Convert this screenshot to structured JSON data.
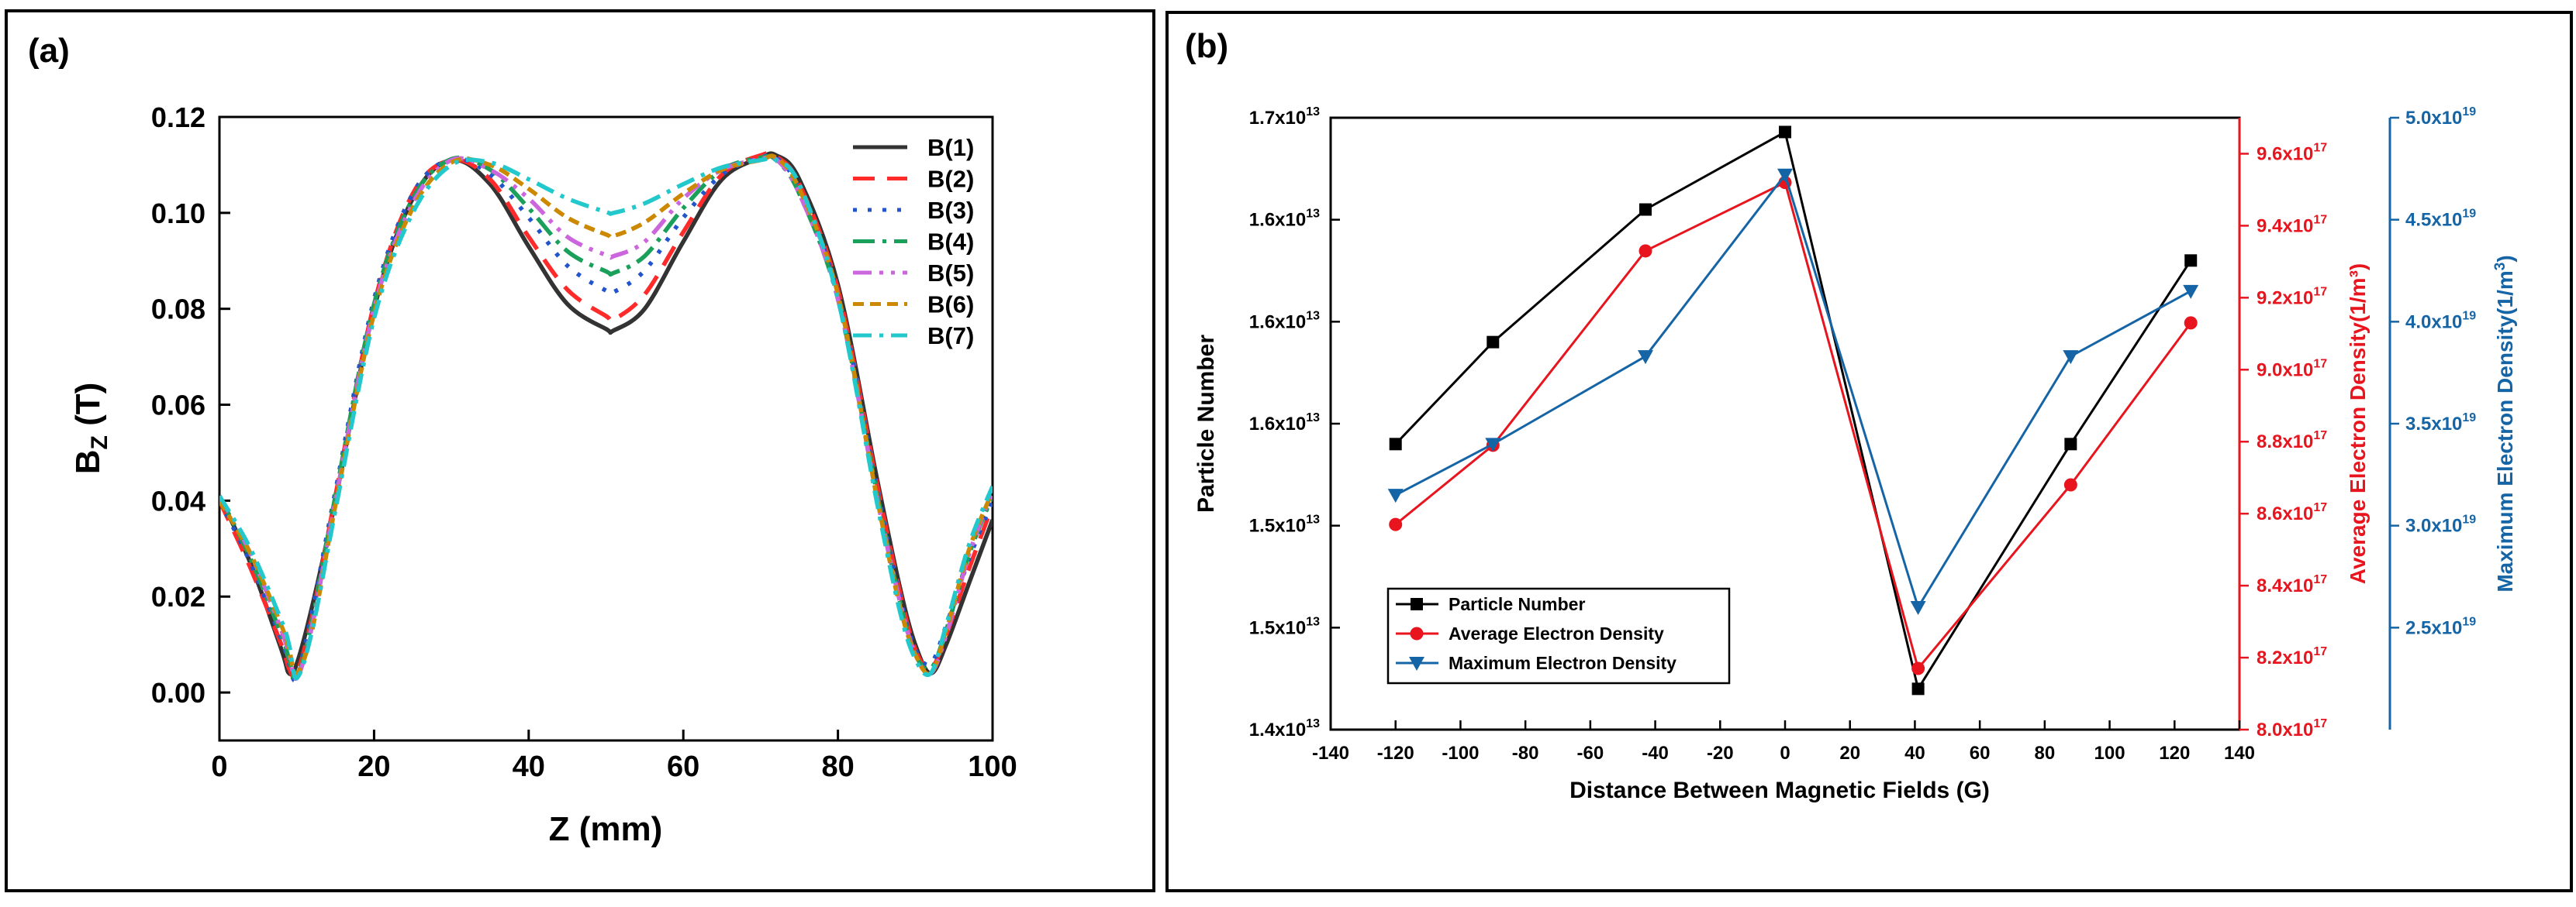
{
  "panels": [
    {
      "label": "(a)"
    },
    {
      "label": "(b)"
    }
  ],
  "chart_data": [
    {
      "type": "line",
      "panel": "(a)",
      "title": "",
      "xlabel": "Z (mm)",
      "ylabel_main": "B",
      "ylabel_sub": "Z",
      "ylabel_unit": " (T)",
      "xlim": [
        0,
        100
      ],
      "ylim": [
        -0.01,
        0.12
      ],
      "xticks": [
        "0",
        "20",
        "40",
        "60",
        "80",
        "100"
      ],
      "yticks": [
        "0.00",
        "0.02",
        "0.04",
        "0.06",
        "0.08",
        "0.10",
        "0.12"
      ],
      "legend_position": "top-right",
      "x": [
        0,
        4,
        8,
        9,
        10,
        12,
        15,
        20,
        25,
        30,
        35,
        40,
        45,
        50,
        55,
        60,
        65,
        70,
        72,
        75,
        80,
        85,
        88,
        90,
        92,
        94,
        97,
        100
      ],
      "series": [
        {
          "name": "B(1)",
          "color": "#333333",
          "dash": "none",
          "min_x": 51,
          "min_y": 0.0755,
          "values": [
            0.041,
            0.027,
            0.009,
            0.004,
            0.006,
            0.018,
            0.04,
            0.08,
            0.103,
            0.111,
            0.106,
            0.093,
            0.081,
            0.0758,
            0.08,
            0.094,
            0.107,
            0.1115,
            0.112,
            0.107,
            0.085,
            0.045,
            0.022,
            0.01,
            0.004,
            0.01,
            0.023,
            0.036
          ]
        },
        {
          "name": "B(2)",
          "color": "#ff2a2a",
          "dash": "28 16",
          "min_x": 51,
          "min_y": 0.0778,
          "values": [
            0.04,
            0.026,
            0.01,
            0.005,
            0.004,
            0.016,
            0.041,
            0.081,
            0.104,
            0.111,
            0.107,
            0.095,
            0.084,
            0.0785,
            0.083,
            0.096,
            0.108,
            0.112,
            0.1118,
            0.106,
            0.084,
            0.044,
            0.021,
            0.009,
            0.005,
            0.012,
            0.026,
            0.039
          ]
        },
        {
          "name": "B(3)",
          "color": "#2255cc",
          "dash": "5 14",
          "min_x": 51,
          "min_y": 0.0835,
          "values": [
            0.04,
            0.027,
            0.011,
            0.006,
            0.003,
            0.017,
            0.042,
            0.082,
            0.104,
            0.1112,
            0.108,
            0.099,
            0.089,
            0.0838,
            0.088,
            0.099,
            0.108,
            0.1115,
            0.1115,
            0.105,
            0.083,
            0.043,
            0.02,
            0.009,
            0.006,
            0.014,
            0.028,
            0.04
          ]
        },
        {
          "name": "B(4)",
          "color": "#1aa05a",
          "dash": "28 10 5 10",
          "min_x": 51,
          "min_y": 0.0875,
          "values": [
            0.041,
            0.028,
            0.012,
            0.007,
            0.003,
            0.015,
            0.041,
            0.081,
            0.103,
            0.1112,
            0.109,
            0.101,
            0.092,
            0.0878,
            0.091,
            0.101,
            0.109,
            0.1115,
            0.111,
            0.104,
            0.082,
            0.042,
            0.019,
            0.008,
            0.005,
            0.013,
            0.029,
            0.041
          ]
        },
        {
          "name": "B(5)",
          "color": "#cc66dd",
          "dash": "24 10 5 10 5 10",
          "min_x": 51,
          "min_y": 0.091,
          "values": [
            0.041,
            0.029,
            0.013,
            0.008,
            0.003,
            0.014,
            0.04,
            0.08,
            0.102,
            0.111,
            0.109,
            0.103,
            0.095,
            0.0912,
            0.094,
            0.103,
            0.109,
            0.1112,
            0.1112,
            0.104,
            0.082,
            0.041,
            0.019,
            0.008,
            0.004,
            0.012,
            0.029,
            0.042
          ]
        },
        {
          "name": "B(6)",
          "color": "#cc8800",
          "dash": "14 8",
          "min_x": 51,
          "min_y": 0.0952,
          "values": [
            0.04,
            0.029,
            0.014,
            0.009,
            0.004,
            0.013,
            0.039,
            0.079,
            0.101,
            0.1105,
            0.11,
            0.105,
            0.099,
            0.0955,
            0.098,
            0.104,
            0.109,
            0.111,
            0.1115,
            0.105,
            0.083,
            0.041,
            0.018,
            0.008,
            0.004,
            0.013,
            0.03,
            0.042
          ]
        },
        {
          "name": "B(7)",
          "color": "#22c8cc",
          "dash": "24 10 5 10",
          "min_x": 51,
          "min_y": 0.1,
          "values": [
            0.041,
            0.03,
            0.015,
            0.01,
            0.003,
            0.013,
            0.038,
            0.078,
            0.1,
            0.11,
            0.1105,
            0.107,
            0.103,
            0.1002,
            0.102,
            0.106,
            0.1095,
            0.111,
            0.111,
            0.106,
            0.082,
            0.04,
            0.017,
            0.007,
            0.004,
            0.014,
            0.031,
            0.043
          ]
        }
      ]
    },
    {
      "type": "line",
      "panel": "(b)",
      "title": "",
      "xlabel": "Distance Between Magnetic Fields (G)",
      "xlim": [
        -140,
        140
      ],
      "xticks": [
        "-140",
        "-120",
        "-100",
        "-80",
        "-60",
        "-40",
        "-20",
        "0",
        "20",
        "40",
        "60",
        "80",
        "100",
        "120",
        "140"
      ],
      "x": [
        -120,
        -90,
        -43,
        0,
        41,
        88,
        125
      ],
      "left_axis": {
        "label": "Particle Number",
        "ylim": [
          14.0,
          17.0
        ],
        "color": "#000000",
        "ticks": [
          {
            "mant": "1.4x10",
            "exp": "13"
          },
          {
            "mant": "1.5x10",
            "exp": "13"
          },
          {
            "mant": "1.5x10",
            "exp": "13"
          },
          {
            "mant": "1.6x10",
            "exp": "13"
          },
          {
            "mant": "1.6x10",
            "exp": "13"
          },
          {
            "mant": "1.6x10",
            "exp": "13"
          },
          {
            "mant": "1.7x10",
            "exp": "13"
          }
        ]
      },
      "right_axis_1": {
        "label": "Average Electron Density(1/m³)",
        "ylim": [
          8.0,
          9.7
        ],
        "color": "#e8141e",
        "ticks": [
          {
            "mant": "8.0x10",
            "exp": "17"
          },
          {
            "mant": "8.2x10",
            "exp": "17"
          },
          {
            "mant": "8.4x10",
            "exp": "17"
          },
          {
            "mant": "8.6x10",
            "exp": "17"
          },
          {
            "mant": "8.8x10",
            "exp": "17"
          },
          {
            "mant": "9.0x10",
            "exp": "17"
          },
          {
            "mant": "9.2x10",
            "exp": "17"
          },
          {
            "mant": "9.4x10",
            "exp": "17"
          },
          {
            "mant": "9.6x10",
            "exp": "17"
          }
        ]
      },
      "right_axis_2": {
        "label_pre": "Maximum Electron Density(1/m",
        "label_sup": "3",
        "label_post": ")",
        "ylim": [
          2.0,
          5.0
        ],
        "color": "#1565a6",
        "ticks": [
          {
            "mant": "2.5x10",
            "exp": "19"
          },
          {
            "mant": "3.0x10",
            "exp": "19"
          },
          {
            "mant": "3.5x10",
            "exp": "19"
          },
          {
            "mant": "4.0x10",
            "exp": "19"
          },
          {
            "mant": "4.5x10",
            "exp": "19"
          },
          {
            "mant": "5.0x10",
            "exp": "19"
          }
        ]
      },
      "legend_position": "bottom-left",
      "series": [
        {
          "name": "Particle Number",
          "axis": "left",
          "color": "#000000",
          "marker": "square",
          "values": [
            15.4,
            15.9,
            16.55,
            16.93,
            14.2,
            15.4,
            16.3
          ]
        },
        {
          "name": "Average Electron Density",
          "axis": "right1",
          "color": "#e8141e",
          "marker": "circle",
          "values": [
            8.57,
            8.79,
            9.33,
            9.52,
            8.17,
            8.68,
            9.13
          ]
        },
        {
          "name": "Maximum Electron Density",
          "axis": "right2",
          "color": "#1565a6",
          "marker": "triangle",
          "values": [
            3.15,
            3.4,
            3.83,
            4.72,
            2.6,
            3.83,
            4.15
          ]
        }
      ]
    }
  ]
}
